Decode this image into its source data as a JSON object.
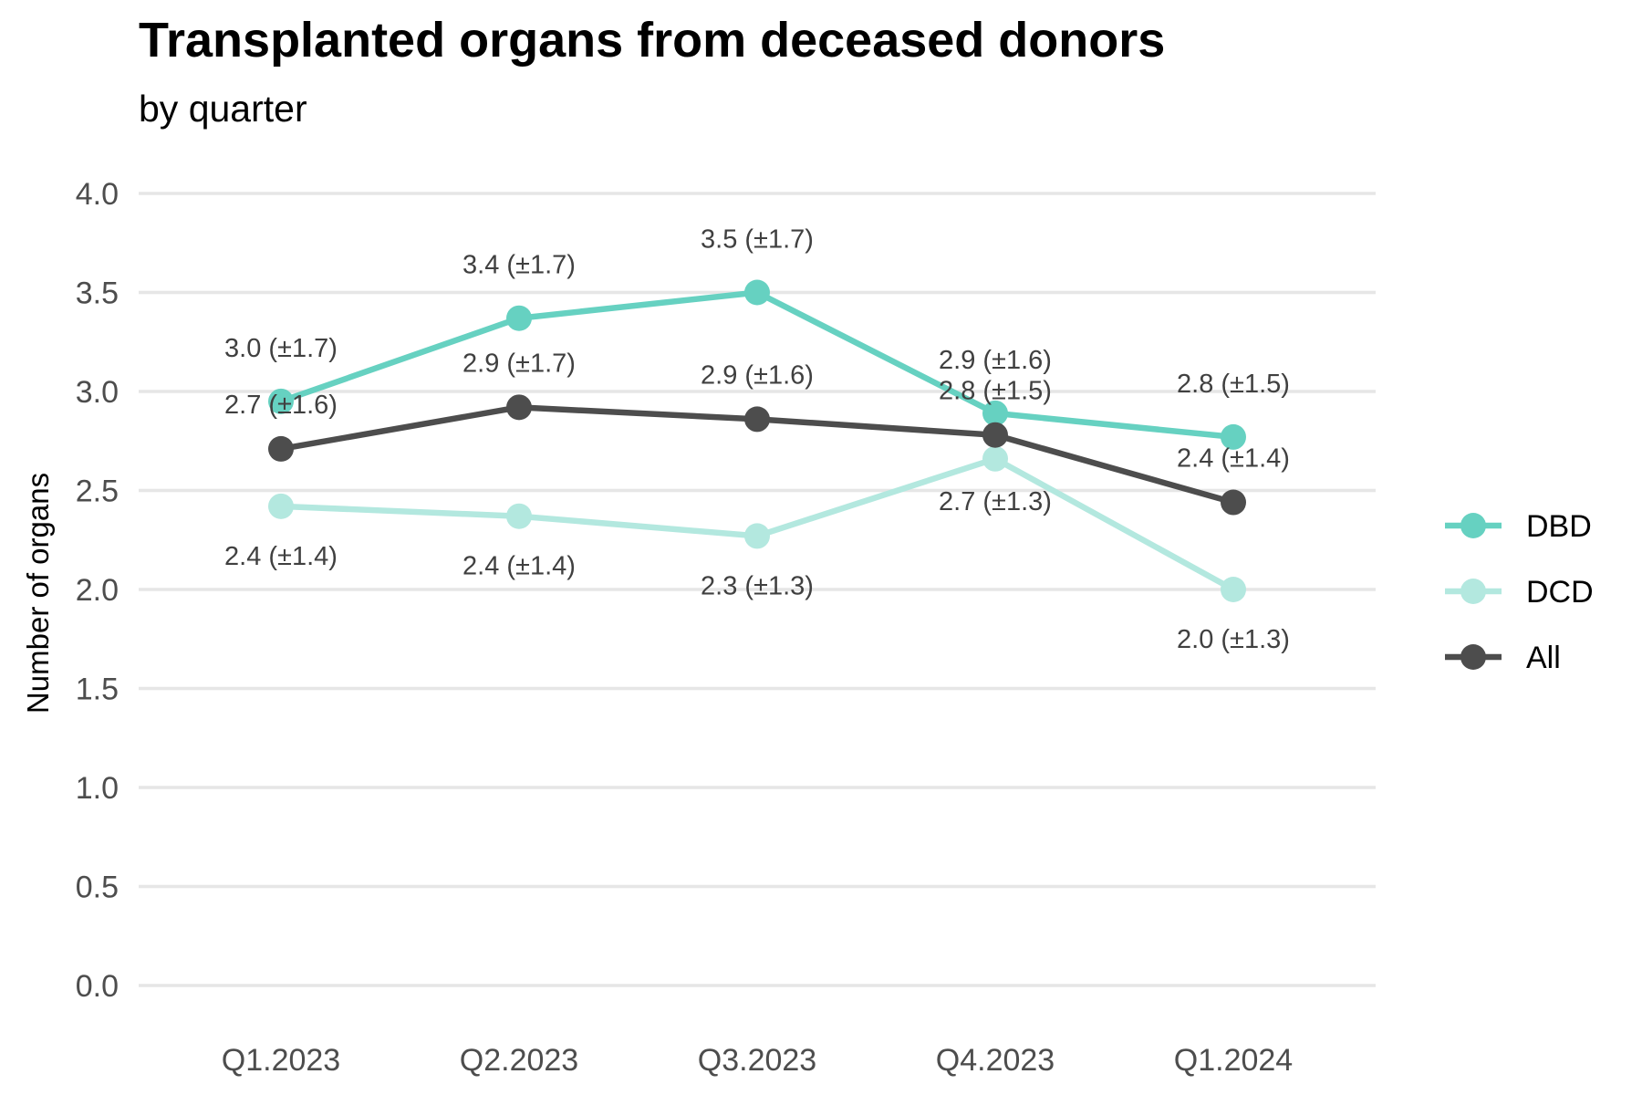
{
  "chart_data": {
    "type": "line",
    "title": "Transplanted organs from deceased donors",
    "subtitle": "by quarter",
    "ylabel": "Number of organs",
    "xlabel": "",
    "ylim": [
      0,
      4
    ],
    "yticks": [
      "0.0",
      "0.5",
      "1.0",
      "1.5",
      "2.0",
      "2.5",
      "3.0",
      "3.5",
      "4.0"
    ],
    "categories": [
      "Q1.2023",
      "Q2.2023",
      "Q3.2023",
      "Q4.2023",
      "Q1.2024"
    ],
    "grid": "horizontal",
    "legend_position": "right",
    "series": [
      {
        "name": "DBD",
        "color": "#66d1c1",
        "values": [
          2.95,
          3.37,
          3.5,
          2.89,
          2.77
        ],
        "labels": [
          "3.0 (±1.7)",
          "3.4 (±1.7)",
          "3.5 (±1.7)",
          "2.9 (±1.6)",
          "2.8 (±1.5)"
        ]
      },
      {
        "name": "DCD",
        "color": "#b3e8df",
        "values": [
          2.42,
          2.37,
          2.27,
          2.66,
          2.0
        ],
        "labels": [
          "2.4 (±1.4)",
          "2.4 (±1.4)",
          "2.3 (±1.3)",
          "2.7 (±1.3)",
          "2.0 (±1.3)"
        ]
      },
      {
        "name": "All",
        "color": "#4d4d4d",
        "values": [
          2.71,
          2.92,
          2.86,
          2.78,
          2.44
        ],
        "labels": [
          "2.7 (±1.6)",
          "2.9 (±1.7)",
          "2.9 (±1.6)",
          "2.8 (±1.5)",
          "2.4 (±1.4)"
        ]
      }
    ]
  }
}
